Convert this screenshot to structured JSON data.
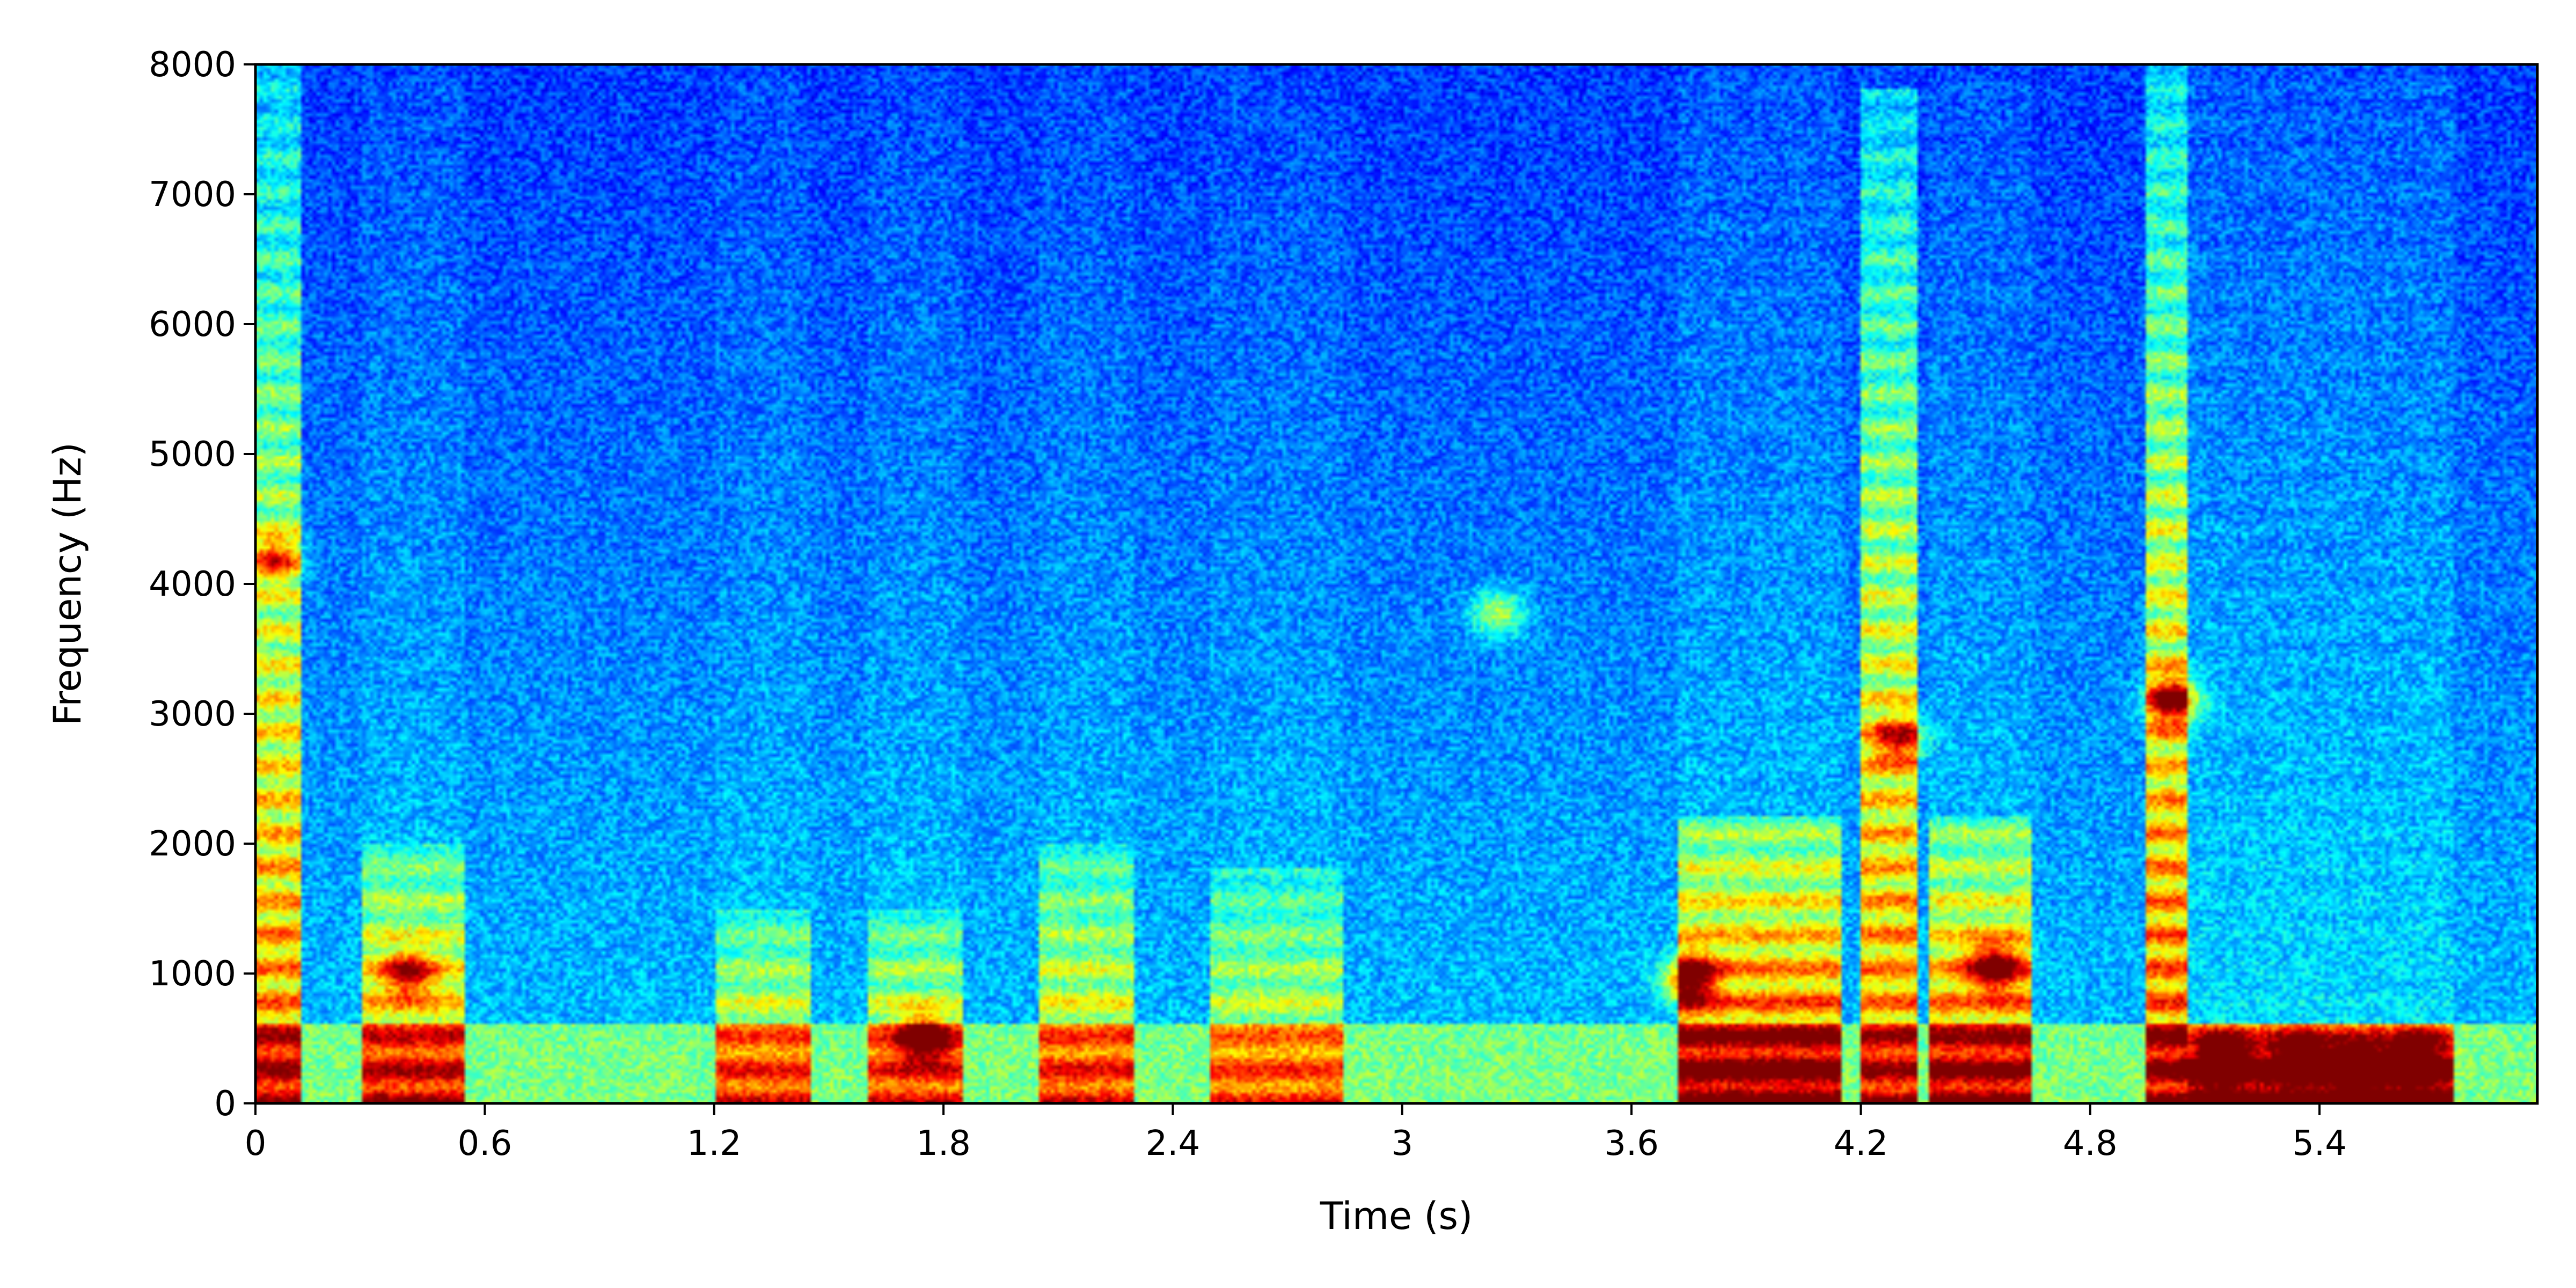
{
  "chart_data": {
    "type": "heatmap",
    "title": "",
    "xlabel": "Time (s)",
    "ylabel": "Frequency (Hz)",
    "xlim": [
      0,
      5.97
    ],
    "ylim": [
      0,
      8000
    ],
    "x_ticks": [
      0,
      0.6,
      1.2,
      1.8,
      2.4,
      3,
      3.6,
      4.2,
      4.8,
      5.4
    ],
    "x_tick_labels": [
      "0",
      "0.6",
      "1.2",
      "1.8",
      "2.4",
      "3",
      "3.6",
      "4.2",
      "4.8",
      "5.4"
    ],
    "y_ticks": [
      0,
      1000,
      2000,
      3000,
      4000,
      5000,
      6000,
      7000,
      8000
    ],
    "y_tick_labels": [
      "0",
      "1000",
      "2000",
      "3000",
      "4000",
      "5000",
      "6000",
      "7000",
      "8000"
    ],
    "colormap": "jet",
    "grid": false,
    "segments": [
      {
        "t0": 0.0,
        "t1": 0.12,
        "strength": 0.55,
        "extent": 8000
      },
      {
        "t0": 0.28,
        "t1": 0.55,
        "strength": 0.55,
        "extent": 2000
      },
      {
        "t0": 1.2,
        "t1": 1.45,
        "strength": 0.45,
        "extent": 1500
      },
      {
        "t0": 1.6,
        "t1": 1.85,
        "strength": 0.45,
        "extent": 1500
      },
      {
        "t0": 2.05,
        "t1": 2.3,
        "strength": 0.45,
        "extent": 2000
      },
      {
        "t0": 2.5,
        "t1": 2.85,
        "strength": 0.4,
        "extent": 1800
      },
      {
        "t0": 3.72,
        "t1": 4.15,
        "strength": 0.7,
        "extent": 2200
      },
      {
        "t0": 4.2,
        "t1": 4.35,
        "strength": 0.55,
        "extent": 7800
      },
      {
        "t0": 4.38,
        "t1": 4.65,
        "strength": 0.65,
        "extent": 2200
      },
      {
        "t0": 4.95,
        "t1": 5.05,
        "strength": 0.6,
        "extent": 8000
      },
      {
        "t0": 5.05,
        "t1": 5.75,
        "strength": 0.85,
        "extent": 600
      }
    ],
    "hotspots": [
      {
        "t": 5.15,
        "f": 350,
        "v": 1.0
      },
      {
        "t": 5.35,
        "f": 350,
        "v": 0.95
      },
      {
        "t": 5.5,
        "f": 300,
        "v": 0.95
      },
      {
        "t": 5.65,
        "f": 350,
        "v": 0.95
      },
      {
        "t": 3.75,
        "f": 950,
        "v": 0.9
      },
      {
        "t": 4.55,
        "f": 1050,
        "v": 0.85
      },
      {
        "t": 1.75,
        "f": 500,
        "v": 0.8
      },
      {
        "t": 5.02,
        "f": 3100,
        "v": 0.85
      },
      {
        "t": 0.4,
        "f": 1000,
        "v": 0.7
      },
      {
        "t": 4.3,
        "f": 2800,
        "v": 0.65
      },
      {
        "t": 0.05,
        "f": 4200,
        "v": 0.6
      },
      {
        "t": 3.25,
        "f": 3780,
        "v": 0.55
      }
    ]
  }
}
